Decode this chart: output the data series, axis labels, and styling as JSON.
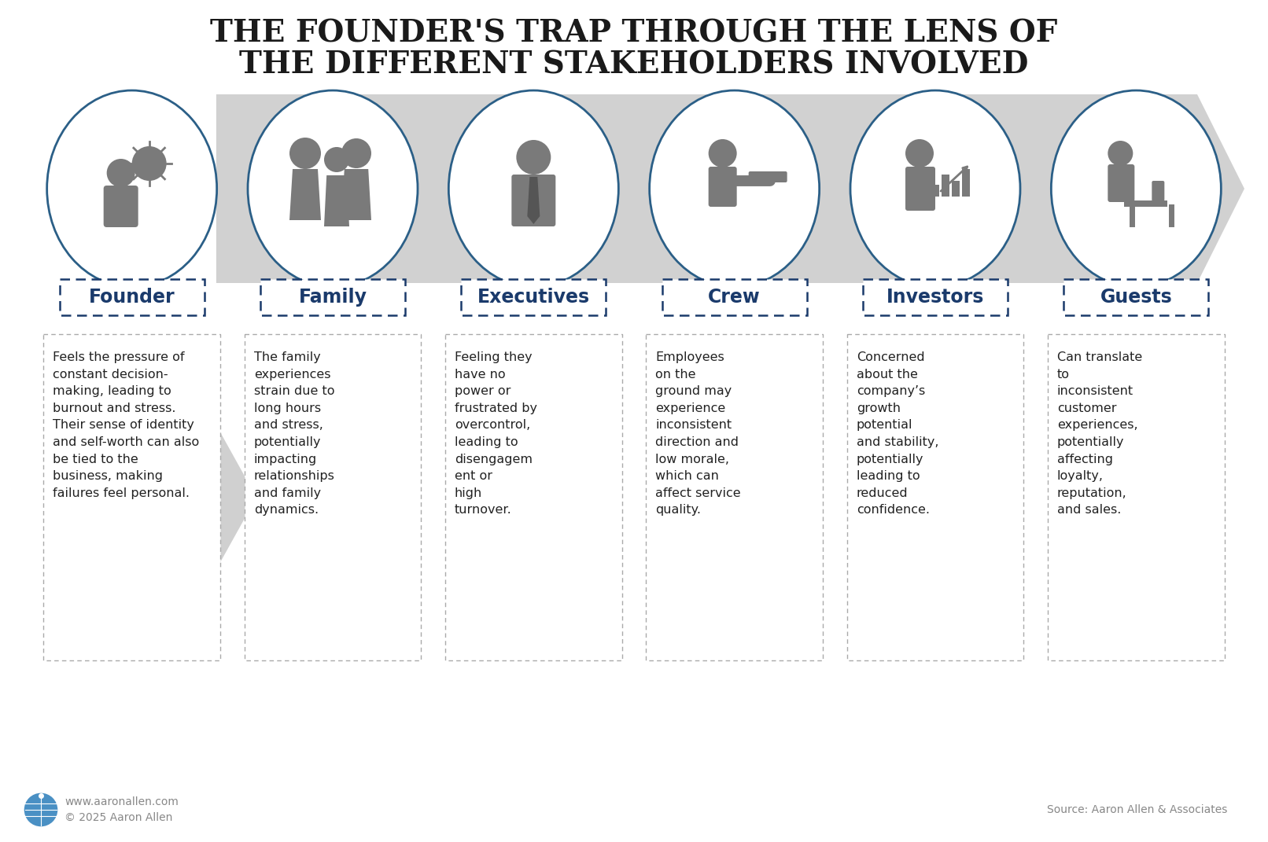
{
  "title_line1": "THE FOUNDER'S TRAP THROUGH THE LENS OF",
  "title_line2": "THE DIFFERENT STAKEHOLDERS INVOLVED",
  "title_color": "#1a1a1a",
  "title_fontsize": 28,
  "background_color": "#ffffff",
  "stakeholders": [
    "Founder",
    "Family",
    "Executives",
    "Crew",
    "Investors",
    "Guests"
  ],
  "label_color": "#1a3a6b",
  "label_fontsize": 17,
  "descriptions": [
    "Feels the pressure of\nconstant decision-\nmaking, leading to\nburnout and stress.\nTheir sense of identity\nand self-worth can also\nbe tied to the\nbusiness, making\nfailures feel personal.",
    "The family\nexperiences\nstrain due to\nlong hours\nand stress,\npotentially\nimpacting\nrelationships\nand family\ndynamics.",
    "Feeling they\nhave no\npower or\nfrustrated by\novercontrol,\nleading to\ndisengagem\nent or\nhigh\nturnover.",
    "Employees\non the\nground may\nexperience\ninconsistent\ndirection and\nlow morale,\nwhich can\naffect service\nquality.",
    "Concerned\nabout the\ncompany’s\ngrowth\npotential\nand stability,\npotentially\nleading to\nreduced\nconfidence.",
    "Can translate\nto\ninconsistent\ncustomer\nexperiences,\npotentially\naffecting\nloyalty,\nreputation,\nand sales."
  ],
  "desc_fontsize": 11.5,
  "desc_color": "#222222",
  "circle_edge_color": "#2b5f87",
  "circle_fill_color": "#ffffff",
  "icon_color": "#7a7a7a",
  "arrow_fill_color": "#cccccc",
  "box_edge_color": "#aaaaaa",
  "label_box_color": "#1a3a6b",
  "footer_left1": "www.aaronallen.com",
  "footer_left2": "© 2025 Aaron Allen",
  "footer_right": "Source: Aaron Allen & Associates",
  "footer_color": "#888888",
  "footer_fontsize": 10,
  "globe_color": "#4a90c4"
}
